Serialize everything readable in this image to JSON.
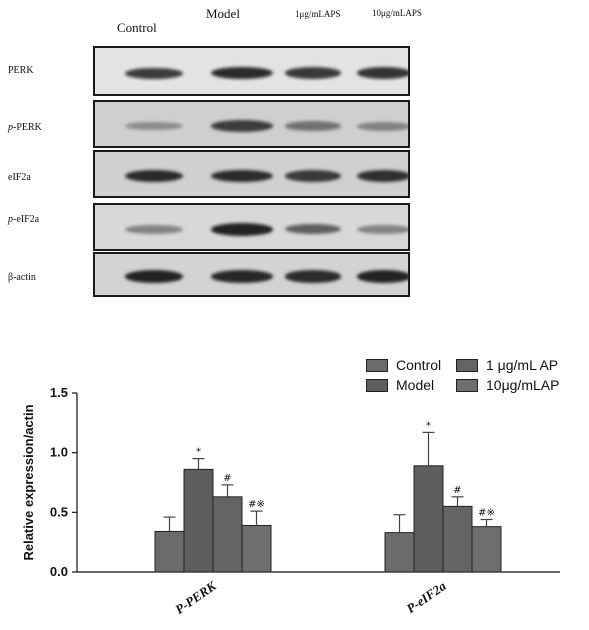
{
  "blot": {
    "lanes": [
      "Control",
      "Model",
      "1μg/mLAPS",
      "10μg/mLAPS"
    ],
    "rows": [
      {
        "prefix": "",
        "name": "PERK",
        "bg": "#e3e3e3",
        "intensity": [
          0.8,
          0.9,
          0.82,
          0.85
        ]
      },
      {
        "prefix": "p-",
        "name": "PERK",
        "bg": "#cfcfcf",
        "intensity": [
          0.35,
          0.8,
          0.5,
          0.4
        ]
      },
      {
        "prefix": "",
        "name": "eIF2a",
        "bg": "#d0d0d0",
        "intensity": [
          0.9,
          0.9,
          0.82,
          0.88
        ]
      },
      {
        "prefix": "p-",
        "name": "eIF2a",
        "bg": "#d8d8d8",
        "intensity": [
          0.4,
          0.95,
          0.6,
          0.4
        ]
      },
      {
        "prefix": "",
        "name": "β-actin",
        "bg": "#d3d3d3",
        "intensity": [
          0.95,
          0.92,
          0.9,
          0.95
        ]
      }
    ]
  },
  "chart_data": {
    "type": "bar",
    "categories": [
      "P-PERK",
      "P-eIF2a"
    ],
    "ylabel": "Relative expression/actin",
    "ylim": [
      0,
      1.5
    ],
    "yticks": [
      "0.0",
      "0.5",
      "1.0",
      "1.5"
    ],
    "series": [
      {
        "name": "Control",
        "color": "#6b6b6b",
        "values": [
          0.34,
          0.33
        ],
        "errors": [
          0.12,
          0.15
        ],
        "marks": [
          "",
          ""
        ]
      },
      {
        "name": "Model",
        "color": "#5e5e5e",
        "values": [
          0.86,
          0.89
        ],
        "errors": [
          0.09,
          0.28
        ],
        "marks": [
          "*",
          "*"
        ]
      },
      {
        "name": "1 μg/mL AP",
        "color": "#646464",
        "values": [
          0.63,
          0.55
        ],
        "errors": [
          0.1,
          0.08
        ],
        "marks": [
          "#",
          "#"
        ]
      },
      {
        "name": "10μg/mLAP",
        "color": "#6e6e6e",
        "values": [
          0.39,
          0.38
        ],
        "errors": [
          0.12,
          0.06
        ],
        "marks": [
          "#※",
          "#※"
        ]
      }
    ],
    "legend": "top-right"
  }
}
